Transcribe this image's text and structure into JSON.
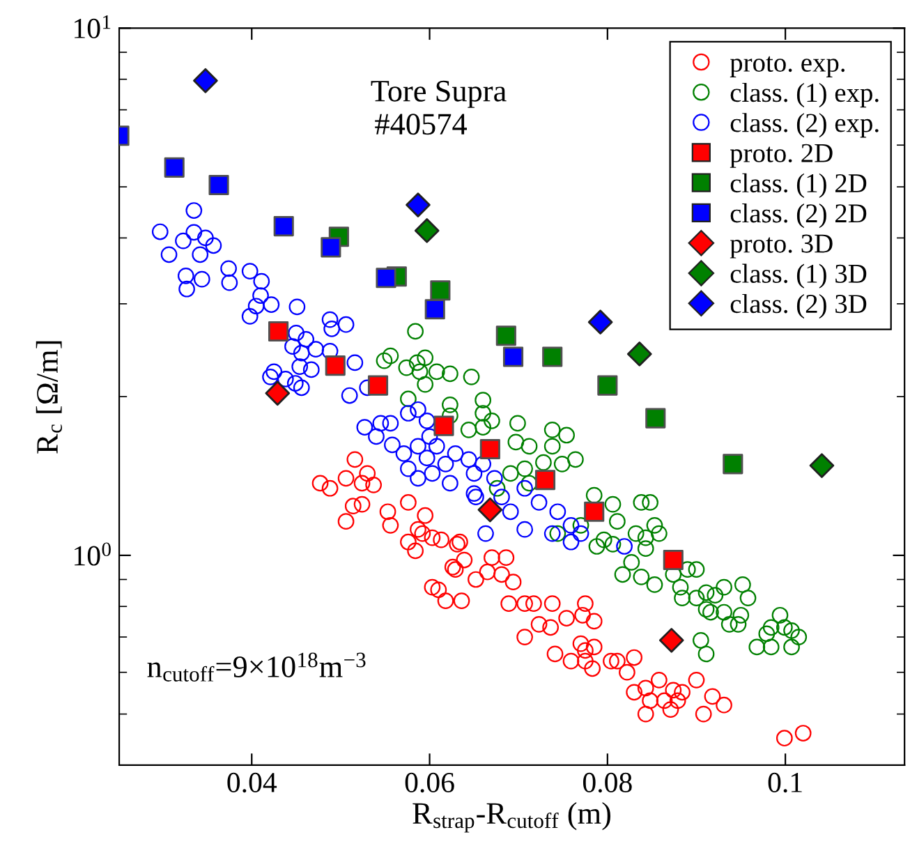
{
  "chart_data": {
    "type": "scatter",
    "xlabel": "R$_{strap}$-R$_{cutoff}$ (m)",
    "ylabel": "R$_{c}$ [Ω/m]",
    "annotations": [
      "Tore Supra",
      "#40574",
      "n$_{cutoff}$=9×10$^{18}$m$^{−3}$"
    ],
    "log": "y",
    "grid": false,
    "legend": "top right",
    "xlim": [
      0.0251,
      0.1134
    ],
    "xticks": [
      0.04,
      0.06,
      0.08,
      0.1
    ],
    "ylim": [
      0.4,
      10
    ],
    "yticks": [
      {
        "value": 1,
        "label": "10$^{0}$"
      },
      {
        "value": 10,
        "label": "10$^{1}$"
      }
    ],
    "series": [
      {
        "name": "proto. exp.",
        "color": "#ff0000",
        "marker": "circle",
        "x": [
          0.0516,
          0.0477,
          0.0488,
          0.0506,
          0.0524,
          0.053,
          0.0537,
          0.0514,
          0.0524,
          0.0506,
          0.0553,
          0.0556,
          0.0576,
          0.0595,
          0.0587,
          0.0613,
          0.0634,
          0.0576,
          0.0592,
          0.0603,
          0.0584,
          0.0631,
          0.0626,
          0.0639,
          0.0603,
          0.0618,
          0.0636,
          0.061,
          0.0629,
          0.0652,
          0.0665,
          0.067,
          0.0686,
          0.0681,
          0.0694,
          0.0689,
          0.0707,
          0.0717,
          0.0738,
          0.0723,
          0.0736,
          0.0707,
          0.0754,
          0.0775,
          0.0785,
          0.0772,
          0.0741,
          0.0759,
          0.0775,
          0.0785,
          0.077,
          0.0783,
          0.0804,
          0.0811,
          0.083,
          0.0822,
          0.0775,
          0.083,
          0.0843,
          0.0858,
          0.0874,
          0.0848,
          0.0864,
          0.0879,
          0.0843,
          0.0871,
          0.0884,
          0.09,
          0.0918,
          0.0908,
          0.0931,
          0.0999,
          0.102
        ],
        "values": [
          1.52,
          1.37,
          1.34,
          1.4,
          1.37,
          1.43,
          1.36,
          1.24,
          1.25,
          1.16,
          1.21,
          1.14,
          1.26,
          1.19,
          1.12,
          1.07,
          1.06,
          1.06,
          1.1,
          1.08,
          1.02,
          1.05,
          0.95,
          0.98,
          0.87,
          0.82,
          0.82,
          0.86,
          0.94,
          0.9,
          0.93,
          0.99,
          0.99,
          0.92,
          0.89,
          0.81,
          0.81,
          0.81,
          0.81,
          0.74,
          0.73,
          0.7,
          0.76,
          0.81,
          0.75,
          0.77,
          0.65,
          0.63,
          0.66,
          0.67,
          0.68,
          0.61,
          0.63,
          0.63,
          0.64,
          0.6,
          0.63,
          0.55,
          0.56,
          0.58,
          0.555,
          0.53,
          0.53,
          0.53,
          0.5,
          0.51,
          0.55,
          0.58,
          0.54,
          0.5,
          0.52,
          0.45,
          0.46
        ]
      },
      {
        "name": "class. (1) exp.",
        "color": "#008000",
        "marker": "circle",
        "x": [
          0.0584,
          0.0549,
          0.0556,
          0.0574,
          0.0586,
          0.0595,
          0.0589,
          0.0595,
          0.0608,
          0.0623,
          0.0647,
          0.0576,
          0.0623,
          0.0623,
          0.0644,
          0.066,
          0.066,
          0.067,
          0.0676,
          0.066,
          0.0699,
          0.0712,
          0.0697,
          0.0738,
          0.0754,
          0.0738,
          0.0749,
          0.0764,
          0.0728,
          0.0707,
          0.0691,
          0.0712,
          0.0785,
          0.0806,
          0.0838,
          0.0848,
          0.0811,
          0.0832,
          0.0853,
          0.0858,
          0.0744,
          0.0796,
          0.077,
          0.0788,
          0.0806,
          0.0827,
          0.0843,
          0.0843,
          0.0817,
          0.0838,
          0.0853,
          0.0874,
          0.089,
          0.09,
          0.0882,
          0.0884,
          0.09,
          0.0911,
          0.0921,
          0.0931,
          0.0952,
          0.0958,
          0.0911,
          0.0916,
          0.0931,
          0.0937,
          0.095,
          0.0947,
          0.0905,
          0.0911,
          0.0968,
          0.0984,
          0.0984,
          0.0994,
          0.0999,
          0.1007,
          0.1015,
          0.1007,
          0.0979
        ],
        "values": [
          2.66,
          2.34,
          2.39,
          2.27,
          2.32,
          2.37,
          2.23,
          2.11,
          2.23,
          2.21,
          2.18,
          1.98,
          1.93,
          1.84,
          1.73,
          1.97,
          1.86,
          1.8,
          1.34,
          1.75,
          1.78,
          1.61,
          1.64,
          1.73,
          1.69,
          1.61,
          1.49,
          1.52,
          1.5,
          1.46,
          1.43,
          1.37,
          1.3,
          1.25,
          1.26,
          1.26,
          1.16,
          1.1,
          1.14,
          1.1,
          1.1,
          1.07,
          1.14,
          1.04,
          1.05,
          0.97,
          1.03,
          1.08,
          0.92,
          0.91,
          0.88,
          0.92,
          0.94,
          0.94,
          0.87,
          0.83,
          0.83,
          0.85,
          0.84,
          0.87,
          0.88,
          0.83,
          0.79,
          0.78,
          0.78,
          0.74,
          0.77,
          0.74,
          0.69,
          0.65,
          0.67,
          0.67,
          0.73,
          0.77,
          0.73,
          0.72,
          0.7,
          0.67,
          0.71
        ]
      },
      {
        "name": "class. (2) exp.",
        "color": "#0000ff",
        "marker": "circle",
        "x": [
          0.0335,
          0.0297,
          0.0307,
          0.0323,
          0.0335,
          0.0348,
          0.0357,
          0.0342,
          0.0326,
          0.0344,
          0.0327,
          0.0374,
          0.0375,
          0.0398,
          0.0411,
          0.041,
          0.0405,
          0.0422,
          0.0398,
          0.0451,
          0.0488,
          0.0506,
          0.049,
          0.045,
          0.0461,
          0.0446,
          0.0456,
          0.0472,
          0.0467,
          0.0454,
          0.0425,
          0.0421,
          0.0438,
          0.0449,
          0.0456,
          0.0488,
          0.0516,
          0.051,
          0.053,
          0.0527,
          0.054,
          0.0545,
          0.0556,
          0.0558,
          0.0571,
          0.0576,
          0.0587,
          0.0597,
          0.06,
          0.0608,
          0.0587,
          0.0597,
          0.0618,
          0.0629,
          0.0644,
          0.065,
          0.0623,
          0.0652,
          0.0663,
          0.0603,
          0.066,
          0.0576,
          0.0587,
          0.065,
          0.0673,
          0.0681,
          0.0691,
          0.0707,
          0.0723,
          0.0744,
          0.0759,
          0.077,
          0.0707,
          0.0738,
          0.0759,
          0.0819
        ],
        "values": [
          4.51,
          4.11,
          3.72,
          3.95,
          4.1,
          4.0,
          3.87,
          3.72,
          3.39,
          3.34,
          3.2,
          3.5,
          3.29,
          3.46,
          3.31,
          3.11,
          2.97,
          2.99,
          2.84,
          2.96,
          2.8,
          2.74,
          2.69,
          2.64,
          2.57,
          2.49,
          2.42,
          2.46,
          2.25,
          2.28,
          2.23,
          2.18,
          2.16,
          2.12,
          2.08,
          2.44,
          2.32,
          2.01,
          2.08,
          1.75,
          1.68,
          1.78,
          1.78,
          1.62,
          1.56,
          1.86,
          1.89,
          1.8,
          1.68,
          1.61,
          1.61,
          1.53,
          1.49,
          1.56,
          1.52,
          1.43,
          1.37,
          1.29,
          1.1,
          1.43,
          1.49,
          1.46,
          1.4,
          1.31,
          1.4,
          1.29,
          1.21,
          1.34,
          1.26,
          1.21,
          1.14,
          1.1,
          1.12,
          1.1,
          1.06,
          1.04
        ]
      },
      {
        "name": "proto. 2D",
        "color": "#ff0000",
        "marker": "square",
        "x": [
          0.043,
          0.0494,
          0.0542,
          0.0616,
          0.0668,
          0.073,
          0.0785,
          0.0874
        ],
        "values": [
          2.66,
          2.29,
          2.1,
          1.76,
          1.59,
          1.39,
          1.21,
          0.98
        ]
      },
      {
        "name": "class. (1) 2D",
        "color": "#008000",
        "marker": "square",
        "x": [
          0.0498,
          0.0563,
          0.0612,
          0.0686,
          0.0738,
          0.08,
          0.0854,
          0.0941
        ],
        "values": [
          4.02,
          3.38,
          3.18,
          2.61,
          2.38,
          2.1,
          1.82,
          1.49
        ]
      },
      {
        "name": "class. (2) 2D",
        "color": "#0000ff",
        "marker": "square",
        "x": [
          0.0251,
          0.0313,
          0.0363,
          0.0436,
          0.0489,
          0.0551,
          0.0606,
          0.0694
        ],
        "values": [
          6.25,
          5.44,
          5.04,
          4.21,
          3.84,
          3.36,
          2.93,
          2.38
        ]
      },
      {
        "name": "proto. 3D",
        "color": "#ff0000",
        "marker": "diamond",
        "x": [
          0.0429,
          0.0668,
          0.0872
        ],
        "values": [
          2.03,
          1.22,
          0.69
        ]
      },
      {
        "name": "class. (1) 3D",
        "color": "#008000",
        "marker": "diamond",
        "x": [
          0.0597,
          0.0836,
          0.1041
        ],
        "values": [
          4.13,
          2.41,
          1.48
        ]
      },
      {
        "name": "class. (2) 3D",
        "color": "#0000ff",
        "marker": "diamond",
        "x": [
          0.0348,
          0.0587,
          0.0792
        ],
        "values": [
          7.95,
          4.62,
          2.77
        ]
      }
    ]
  }
}
